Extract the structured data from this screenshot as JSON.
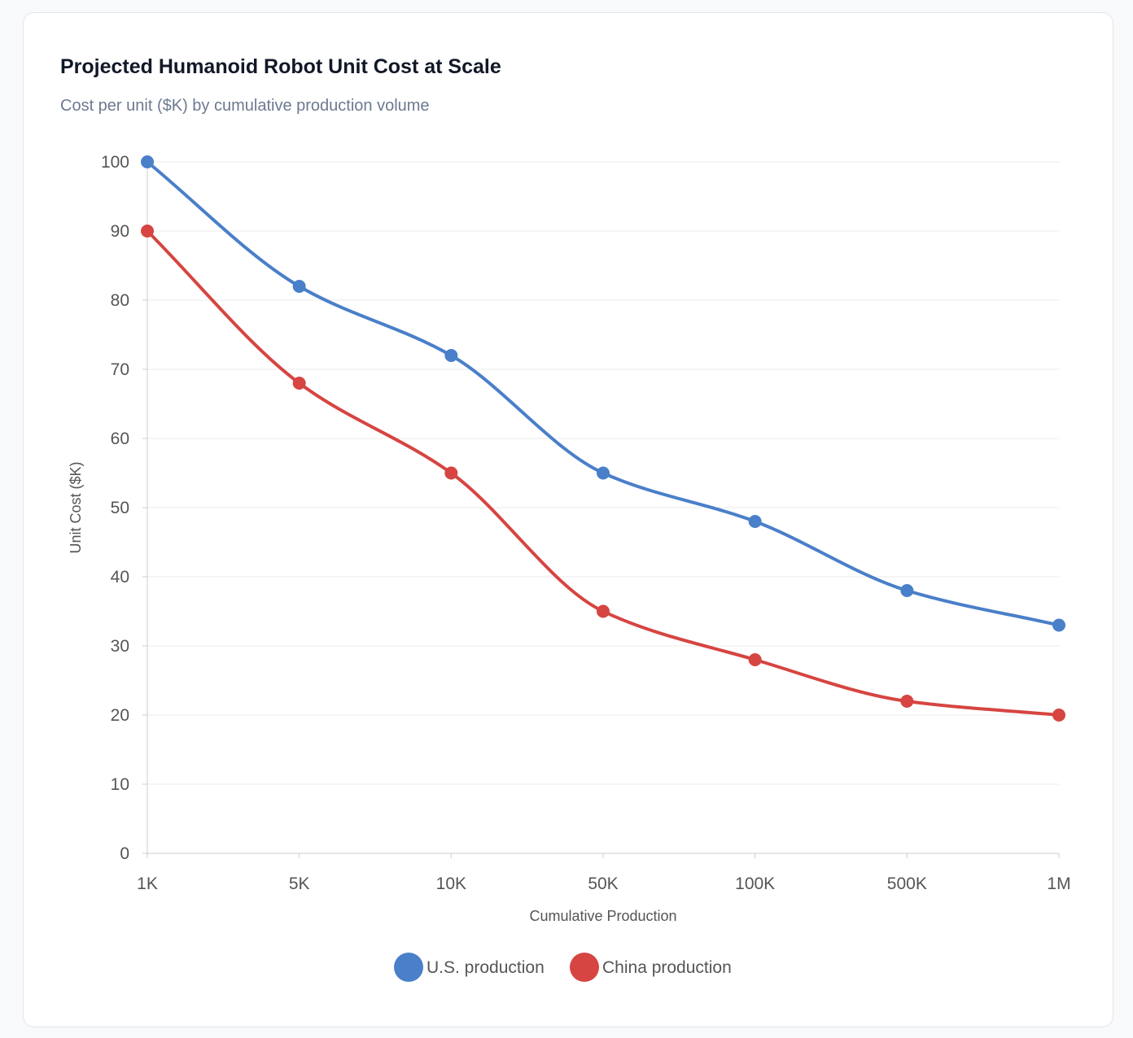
{
  "chart_data": {
    "type": "line",
    "title": "Projected Humanoid Robot Unit Cost at Scale",
    "subtitle": "Cost per unit ($K) by cumulative production volume",
    "xlabel": "Cumulative Production",
    "ylabel": "Unit Cost ($K)",
    "categories": [
      "1K",
      "5K",
      "10K",
      "50K",
      "100K",
      "500K",
      "1M"
    ],
    "ylim": [
      0,
      100
    ],
    "yticks": [
      0,
      10,
      20,
      30,
      40,
      50,
      60,
      70,
      80,
      90,
      100
    ],
    "grid": true,
    "legend_position": "bottom-center",
    "series": [
      {
        "name": "U.S. production",
        "color": "#4a7fc9",
        "values": [
          100,
          82,
          72,
          55,
          48,
          38,
          33
        ]
      },
      {
        "name": "China production",
        "color": "#d64541",
        "values": [
          90,
          68,
          55,
          35,
          28,
          22,
          20
        ]
      }
    ]
  }
}
